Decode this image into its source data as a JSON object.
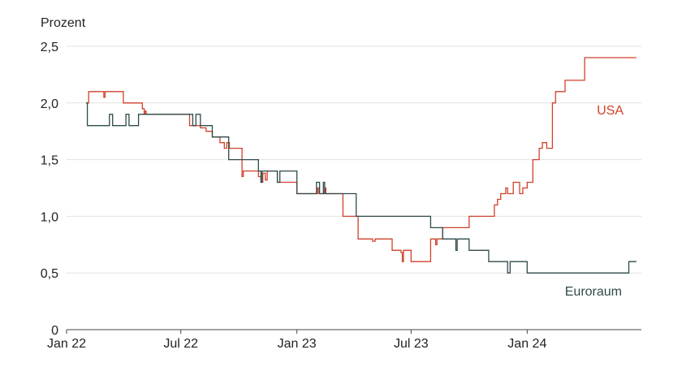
{
  "chart_data": {
    "type": "line",
    "ylabel": "Prozent",
    "ylim": [
      0,
      2.5
    ],
    "y_ticks": [
      {
        "value": 0,
        "label": "0"
      },
      {
        "value": 0.5,
        "label": "0,5"
      },
      {
        "value": 1.0,
        "label": "1,0"
      },
      {
        "value": 1.5,
        "label": "1,5"
      },
      {
        "value": 2.0,
        "label": "2,0"
      },
      {
        "value": 2.5,
        "label": "2,5"
      }
    ],
    "x_range": [
      "2022-01-01",
      "2024-06-30"
    ],
    "x_ticks": [
      {
        "date": "2022-01-01",
        "label": "Jan 22"
      },
      {
        "date": "2022-07-01",
        "label": "Jul 22"
      },
      {
        "date": "2023-01-01",
        "label": "Jan 23"
      },
      {
        "date": "2023-07-01",
        "label": "Jul 23"
      },
      {
        "date": "2024-01-01",
        "label": "Jan 24"
      }
    ],
    "grid": true,
    "series": [
      {
        "name": "USA",
        "color": "#d0412b",
        "interpolation": "step",
        "points": [
          [
            "2022-02-01",
            2.0
          ],
          [
            "2022-02-05",
            2.1
          ],
          [
            "2022-03-01",
            2.05
          ],
          [
            "2022-03-03",
            2.1
          ],
          [
            "2022-04-01",
            2.0
          ],
          [
            "2022-05-01",
            1.95
          ],
          [
            "2022-05-04",
            1.9
          ],
          [
            "2022-05-06",
            1.93
          ],
          [
            "2022-05-07",
            1.9
          ],
          [
            "2022-07-01",
            1.9
          ],
          [
            "2022-07-15",
            1.8
          ],
          [
            "2022-08-01",
            1.78
          ],
          [
            "2022-08-10",
            1.75
          ],
          [
            "2022-08-20",
            1.7
          ],
          [
            "2022-09-01",
            1.65
          ],
          [
            "2022-09-08",
            1.6
          ],
          [
            "2022-09-12",
            1.65
          ],
          [
            "2022-09-16",
            1.6
          ],
          [
            "2022-10-01",
            1.6
          ],
          [
            "2022-10-06",
            1.35
          ],
          [
            "2022-10-08",
            1.4
          ],
          [
            "2022-11-01",
            1.35
          ],
          [
            "2022-11-05",
            1.3
          ],
          [
            "2022-11-08",
            1.38
          ],
          [
            "2022-11-12",
            1.32
          ],
          [
            "2022-11-15",
            1.4
          ],
          [
            "2022-12-01",
            1.3
          ],
          [
            "2023-01-01",
            1.2
          ],
          [
            "2023-02-03",
            1.25
          ],
          [
            "2023-02-05",
            1.2
          ],
          [
            "2023-02-15",
            1.25
          ],
          [
            "2023-02-16",
            1.2
          ],
          [
            "2023-03-15",
            1.0
          ],
          [
            "2023-04-05",
            1.0
          ],
          [
            "2023-04-08",
            0.8
          ],
          [
            "2023-05-01",
            0.78
          ],
          [
            "2023-05-05",
            0.8
          ],
          [
            "2023-06-01",
            0.7
          ],
          [
            "2023-06-15",
            0.68
          ],
          [
            "2023-06-17",
            0.6
          ],
          [
            "2023-06-19",
            0.7
          ],
          [
            "2023-07-01",
            0.6
          ],
          [
            "2023-08-01",
            0.8
          ],
          [
            "2023-08-09",
            0.75
          ],
          [
            "2023-08-11",
            0.8
          ],
          [
            "2023-08-20",
            0.9
          ],
          [
            "2023-10-01",
            1.0
          ],
          [
            "2023-11-10",
            1.1
          ],
          [
            "2023-11-15",
            1.15
          ],
          [
            "2023-11-20",
            1.2
          ],
          [
            "2023-11-28",
            1.25
          ],
          [
            "2023-12-01",
            1.2
          ],
          [
            "2023-12-10",
            1.3
          ],
          [
            "2023-12-20",
            1.2
          ],
          [
            "2023-12-25",
            1.25
          ],
          [
            "2024-01-01",
            1.3
          ],
          [
            "2024-01-10",
            1.5
          ],
          [
            "2024-01-20",
            1.6
          ],
          [
            "2024-01-25",
            1.65
          ],
          [
            "2024-02-01",
            1.6
          ],
          [
            "2024-02-10",
            2.0
          ],
          [
            "2024-02-15",
            2.1
          ],
          [
            "2024-03-01",
            2.2
          ],
          [
            "2024-04-01",
            2.4
          ],
          [
            "2024-06-22",
            2.4
          ]
        ]
      },
      {
        "name": "Euroraum",
        "color": "#2e4a4a",
        "interpolation": "step",
        "points": [
          [
            "2022-02-01",
            2.0
          ],
          [
            "2022-02-03",
            1.8
          ],
          [
            "2022-03-10",
            1.9
          ],
          [
            "2022-03-15",
            1.8
          ],
          [
            "2022-04-05",
            1.9
          ],
          [
            "2022-04-10",
            1.8
          ],
          [
            "2022-04-20",
            1.8
          ],
          [
            "2022-04-25",
            1.9
          ],
          [
            "2022-05-01",
            1.9
          ],
          [
            "2022-07-20",
            1.8
          ],
          [
            "2022-07-25",
            1.9
          ],
          [
            "2022-08-01",
            1.8
          ],
          [
            "2022-08-20",
            1.7
          ],
          [
            "2022-09-15",
            1.5
          ],
          [
            "2022-11-01",
            1.4
          ],
          [
            "2022-11-05",
            1.3
          ],
          [
            "2022-11-07",
            1.4
          ],
          [
            "2022-12-01",
            1.3
          ],
          [
            "2022-12-05",
            1.4
          ],
          [
            "2023-01-01",
            1.2
          ],
          [
            "2023-02-01",
            1.3
          ],
          [
            "2023-02-06",
            1.2
          ],
          [
            "2023-02-12",
            1.3
          ],
          [
            "2023-02-14",
            1.2
          ],
          [
            "2023-03-01",
            1.2
          ],
          [
            "2023-03-10",
            1.2
          ],
          [
            "2023-04-01",
            1.2
          ],
          [
            "2023-04-05",
            1.0
          ],
          [
            "2023-08-01",
            0.9
          ],
          [
            "2023-08-20",
            0.8
          ],
          [
            "2023-09-10",
            0.7
          ],
          [
            "2023-09-12",
            0.8
          ],
          [
            "2023-10-01",
            0.7
          ],
          [
            "2023-11-01",
            0.6
          ],
          [
            "2023-12-01",
            0.5
          ],
          [
            "2023-12-05",
            0.6
          ],
          [
            "2023-12-20",
            0.6
          ],
          [
            "2024-01-01",
            0.5
          ],
          [
            "2024-06-10",
            0.6
          ],
          [
            "2024-06-22",
            0.6
          ]
        ]
      }
    ]
  }
}
